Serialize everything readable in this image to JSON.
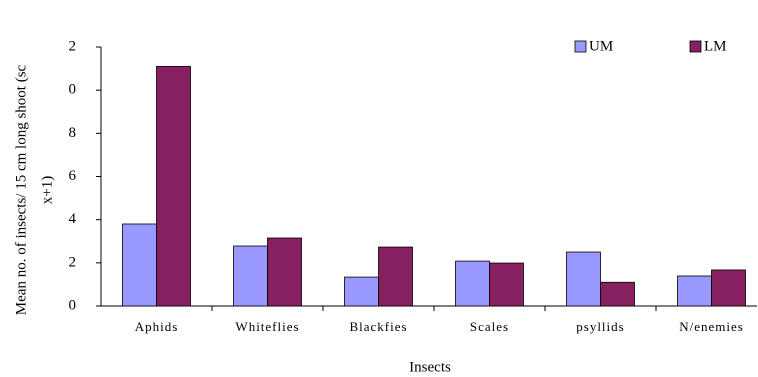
{
  "chart_data": {
    "type": "bar",
    "y_label": [
      "Mean no. of insects/ 15 cm long shoot (sc",
      "x+1)"
    ],
    "x_label": "Insects",
    "categories": [
      "Aphids",
      "Whiteflies",
      "Blackfies",
      "Scales",
      "psyllids",
      "N/enemies"
    ],
    "series": [
      {
        "name": "UM",
        "color": "#9999ff",
        "values": [
          3.8,
          2.78,
          1.34,
          2.08,
          2.5,
          1.39
        ]
      },
      {
        "name": "LM",
        "color": "#872060",
        "values": [
          11.1,
          3.15,
          2.73,
          1.99,
          1.1,
          1.67
        ]
      }
    ],
    "ylim": [
      0,
      12
    ],
    "yticks": [
      0,
      2,
      4,
      6,
      8,
      {
        "value": 10,
        "label": "0"
      },
      {
        "value": 12,
        "label": "2"
      }
    ],
    "legend": "top-right"
  }
}
